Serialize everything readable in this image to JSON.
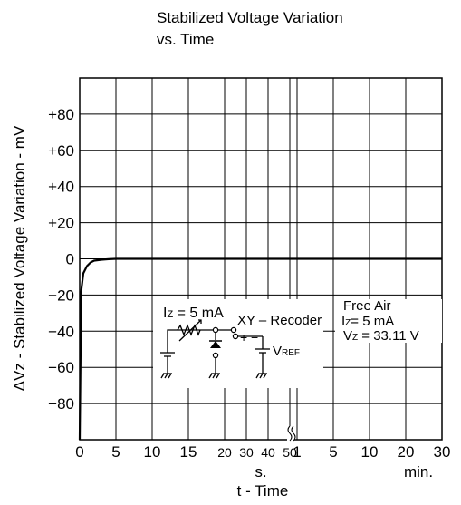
{
  "chart_data": {
    "type": "line",
    "title_line1": "Stabilized Voltage Variation",
    "title_line2": "vs. Time",
    "ylabel": "ΔVz - Stabilized Voltage Variation - mV",
    "xlabel": "t - Time",
    "ylim": [
      -100,
      100
    ],
    "y_ticks": [
      "+80",
      "+60",
      "+40",
      "+20",
      "0",
      "−20",
      "−40",
      "−60",
      "−80"
    ],
    "y_tick_values": [
      80,
      60,
      40,
      20,
      0,
      -20,
      -40,
      -60,
      -80
    ],
    "x_ticks_seconds": [
      "0",
      "5",
      "10",
      "15",
      "20",
      "30",
      "40",
      "50"
    ],
    "x_ticks_minutes": [
      "1",
      "5",
      "10",
      "20",
      "30"
    ],
    "x_unit_seconds": "s.",
    "x_unit_minutes": "min.",
    "grid": true,
    "series": [
      {
        "x_seconds": [
          0,
          0.2,
          0.5,
          1,
          1.5,
          2,
          3,
          4,
          5,
          10,
          20,
          50
        ],
        "y": [
          -100,
          -18,
          -8,
          -4,
          -2,
          -1,
          -0.5,
          -0.2,
          0,
          0,
          0,
          0
        ],
        "x_minutes": [
          1,
          5,
          10,
          20,
          30
        ],
        "y_minutes": [
          0,
          0,
          0,
          0,
          0
        ]
      }
    ]
  },
  "inset": {
    "iz_label": "I",
    "iz_sub": "Z",
    "iz_value": " = 5 mA",
    "recorder_label": "XY – Recoder",
    "plus": "+",
    "minus": "−",
    "vref_label": "V",
    "vref_sub": "REF"
  },
  "conditions": {
    "line1": "Free Air",
    "line2_label": "I",
    "line2_sub": "Z",
    "line2_value": "= 5 mA",
    "line3_label": "V",
    "line3_sub": "Z",
    "line3_value": " = 33.11 V"
  }
}
